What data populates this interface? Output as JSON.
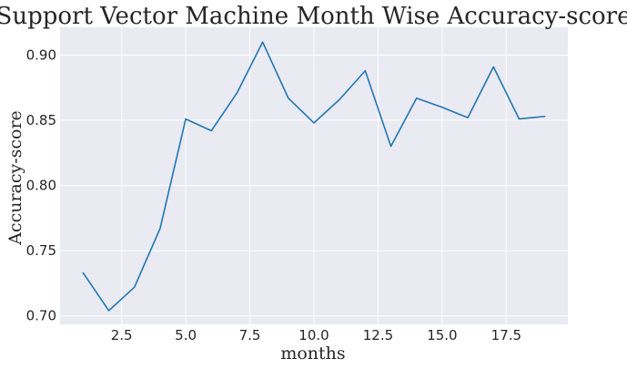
{
  "chart_data": {
    "type": "line",
    "title": "Support Vector Machine Month Wise Accuracy-score",
    "xlabel": "months",
    "ylabel": "Accuracy-score",
    "xlim": [
      0.1,
      19.9
    ],
    "ylim": [
      0.6935,
      0.9213
    ],
    "xticks": [
      2.5,
      5.0,
      7.5,
      10.0,
      12.5,
      15.0,
      17.5
    ],
    "xtick_labels": [
      "2.5",
      "5.0",
      "7.5",
      "10.0",
      "12.5",
      "15.0",
      "17.5"
    ],
    "yticks": [
      0.7,
      0.75,
      0.8,
      0.85,
      0.9
    ],
    "ytick_labels": [
      "0.70",
      "0.75",
      "0.80",
      "0.85",
      "0.90"
    ],
    "grid": true,
    "series": [
      {
        "color": "#1f77b4",
        "x": [
          1,
          2,
          3,
          4,
          5,
          6,
          7,
          8,
          9,
          10,
          11,
          12,
          13,
          14,
          15,
          16,
          17,
          18,
          19
        ],
        "y": [
          0.733,
          0.704,
          0.722,
          0.767,
          0.851,
          0.842,
          0.871,
          0.91,
          0.867,
          0.848,
          0.866,
          0.888,
          0.83,
          0.867,
          0.86,
          0.852,
          0.891,
          0.851,
          0.853
        ]
      }
    ]
  }
}
